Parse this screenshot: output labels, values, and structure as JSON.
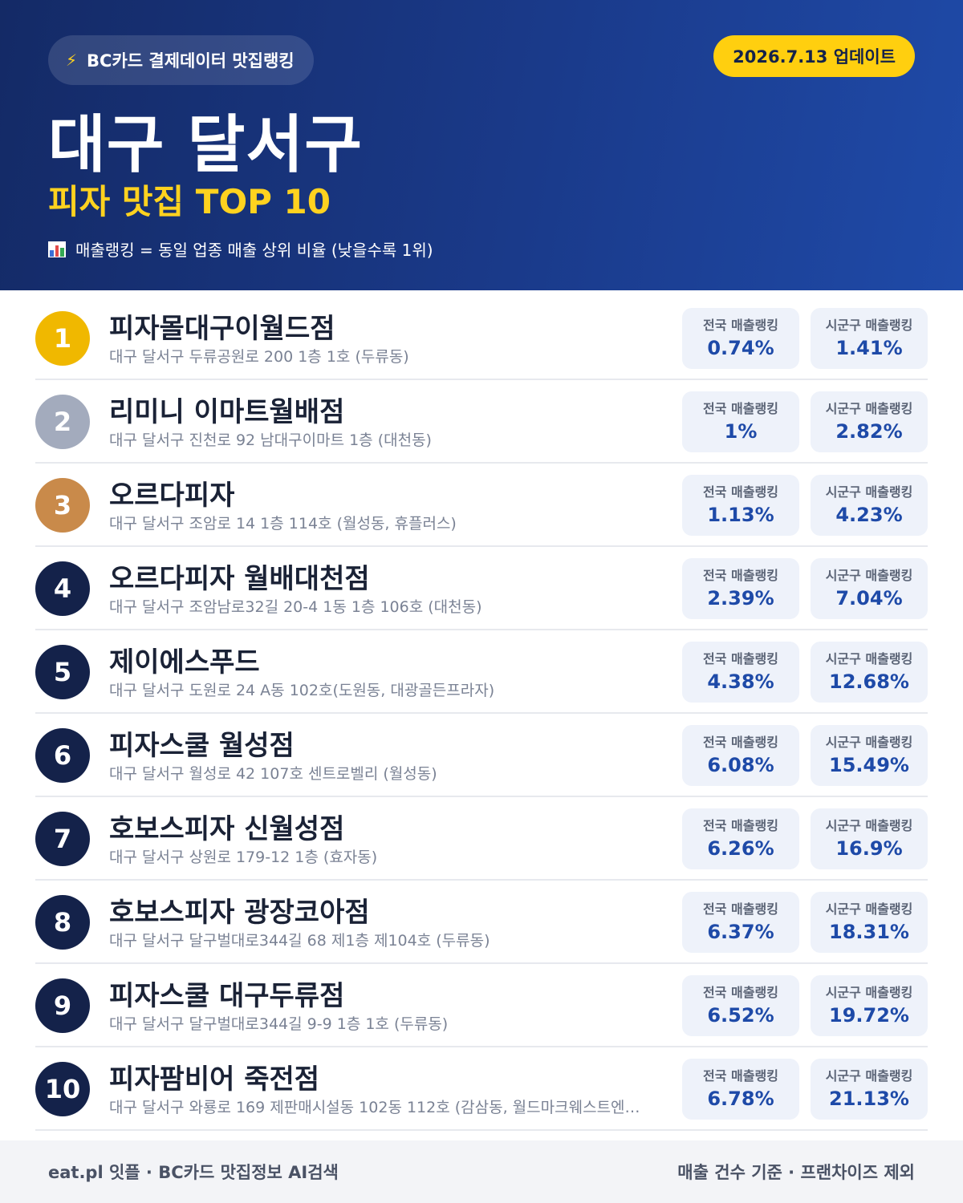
{
  "header": {
    "badge": "BC카드 결제데이터 맛집랭킹",
    "update": "2026.7.13 업데이트",
    "city": "대구 달서구",
    "subtitle": "피자 맛집 TOP 10",
    "note": "매출랭킹 = 동일 업종 매출 상위 비율 (낮을수록 1위)",
    "icons": {
      "badge": "lightning-icon",
      "note": "bar-chart-icon"
    }
  },
  "labels": {
    "national": "전국 매출랭킹",
    "local": "시군구 매출랭킹"
  },
  "colors": {
    "gold": "#f0b800",
    "silver": "#a3abbd",
    "bronze": "#c98a4a",
    "navy": "#14224a",
    "accent": "#ffcf0f"
  },
  "items": [
    {
      "rank": "1",
      "name": "피자몰대구이월드점",
      "address": "대구 달서구 두류공원로 200 1층 1호 (두류동)",
      "national": "0.74%",
      "local": "1.41%"
    },
    {
      "rank": "2",
      "name": "리미니 이마트월배점",
      "address": "대구 달서구 진천로 92 남대구이마트 1층 (대천동)",
      "national": "1%",
      "local": "2.82%"
    },
    {
      "rank": "3",
      "name": "오르다피자",
      "address": "대구 달서구 조암로 14 1층 114호 (월성동, 휴플러스)",
      "national": "1.13%",
      "local": "4.23%"
    },
    {
      "rank": "4",
      "name": "오르다피자 월배대천점",
      "address": "대구 달서구 조암남로32길 20-4 1동 1층 106호 (대천동)",
      "national": "2.39%",
      "local": "7.04%"
    },
    {
      "rank": "5",
      "name": "제이에스푸드",
      "address": "대구 달서구 도원로 24 A동 102호(도원동, 대광골든프라자)",
      "national": "4.38%",
      "local": "12.68%"
    },
    {
      "rank": "6",
      "name": "피자스쿨 월성점",
      "address": "대구 달서구 월성로 42 107호 센트로벨리 (월성동)",
      "national": "6.08%",
      "local": "15.49%"
    },
    {
      "rank": "7",
      "name": "호보스피자 신월성점",
      "address": "대구 달서구 상원로 179-12 1층 (효자동)",
      "national": "6.26%",
      "local": "16.9%"
    },
    {
      "rank": "8",
      "name": "호보스피자 광장코아점",
      "address": "대구 달서구 달구벌대로344길 68 제1층 제104호 (두류동)",
      "national": "6.37%",
      "local": "18.31%"
    },
    {
      "rank": "9",
      "name": "피자스쿨 대구두류점",
      "address": "대구 달서구 달구벌대로344길 9-9 1층 1호 (두류동)",
      "national": "6.52%",
      "local": "19.72%"
    },
    {
      "rank": "10",
      "name": "피자팜비어 죽전점",
      "address": "대구 달서구 와룡로 169 제판매시설동 102동 112호 (감삼동, 월드마크웨스트엔…",
      "national": "6.78%",
      "local": "21.13%"
    }
  ],
  "footer": {
    "left": "eat.pl 잇플 · BC카드 맛집정보 AI검색",
    "right": "매출 건수 기준 · 프랜차이즈 제외"
  }
}
